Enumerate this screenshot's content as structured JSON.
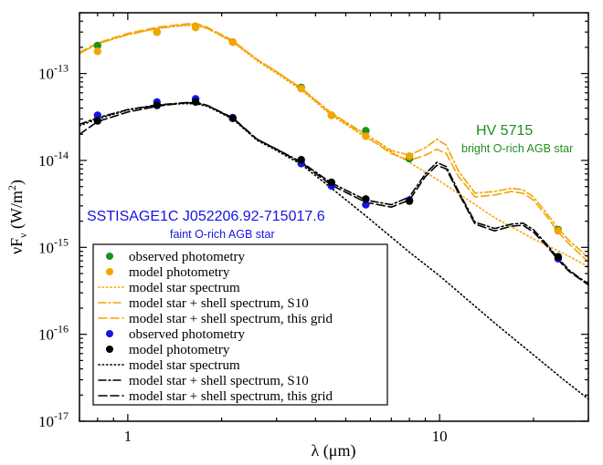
{
  "chart_data": {
    "type": "line",
    "xscale": "log",
    "yscale": "log",
    "xlim": [
      0.7,
      30
    ],
    "ylim": [
      1e-17,
      5e-13
    ],
    "x_ticks": [
      {
        "v": 1,
        "label": "1"
      },
      {
        "v": 10,
        "label": "10"
      }
    ],
    "y_ticks": [
      {
        "v": 1e-17,
        "base": "10",
        "exp": "-17"
      },
      {
        "v": 1e-16,
        "base": "10",
        "exp": "-16"
      },
      {
        "v": 1e-15,
        "base": "10",
        "exp": "-15"
      },
      {
        "v": 1e-14,
        "base": "10",
        "exp": "-14"
      },
      {
        "v": 1e-13,
        "base": "10",
        "exp": "-13"
      }
    ],
    "xlabel": {
      "pre": "λ (",
      "mu": "μ",
      "post": "m)"
    },
    "ylabel": {
      "nu": "ν",
      "F": "F",
      "sub": "ν",
      "unit": " (W/m",
      "exp": "2",
      "close": ")"
    },
    "colors": {
      "green": "#1f8f1f",
      "orange": "#f5a400",
      "blue": "#1515e0",
      "black": "#000000"
    },
    "series": [
      {
        "name": "HV 5715 observed photometry",
        "style": "marker",
        "color": "green",
        "x": [
          0.8,
          1.24,
          1.65,
          2.17,
          3.6,
          4.5,
          5.8,
          8.0,
          24.0
        ],
        "y": [
          2.1e-13,
          3e-13,
          3.4e-13,
          2.3e-13,
          6.9e-14,
          3.3e-14,
          2.2e-14,
          1.05e-14,
          1.6e-15
        ]
      },
      {
        "name": "HV 5715 model photometry",
        "style": "marker",
        "color": "orange",
        "x": [
          0.8,
          1.24,
          1.65,
          2.17,
          3.6,
          4.5,
          5.8,
          8.0,
          24.0
        ],
        "y": [
          1.8e-13,
          3e-13,
          3.4e-13,
          2.3e-13,
          6.7e-14,
          3.3e-14,
          1.9e-14,
          1.12e-14,
          1.55e-15
        ]
      },
      {
        "name": "HV 5715 model star spectrum",
        "style": "dotted",
        "color": "orange",
        "x": [
          0.7,
          0.8,
          1.0,
          1.24,
          1.5,
          1.65,
          1.8,
          2.17,
          2.6,
          3.0,
          3.6,
          4.5,
          5.8,
          8.0,
          10,
          15,
          20,
          25,
          30
        ],
        "y": [
          1.7e-13,
          2.2e-13,
          2.8e-13,
          3.3e-13,
          3.55e-13,
          3.6e-13,
          3.3e-13,
          2.3e-13,
          1.4e-13,
          1e-13,
          6.5e-14,
          3.3e-14,
          1.85e-14,
          9.5e-15,
          5.8e-15,
          2.2e-15,
          1.25e-15,
          8.5e-16,
          6e-16
        ]
      },
      {
        "name": "HV 5715 model star + shell spectrum, S10",
        "style": "dashdot",
        "color": "orange",
        "x": [
          0.7,
          0.8,
          1.0,
          1.24,
          1.5,
          1.65,
          1.8,
          2.17,
          2.6,
          3.0,
          3.6,
          4.5,
          5.8,
          7.0,
          8.0,
          9.0,
          9.8,
          10.5,
          11.5,
          13,
          15,
          17,
          18.5,
          20,
          22,
          24,
          26,
          28,
          30
        ],
        "y": [
          1.7e-13,
          2.2e-13,
          2.8e-13,
          3.3e-13,
          3.6e-13,
          3.7e-13,
          3.3e-13,
          2.35e-13,
          1.45e-13,
          1.05e-13,
          6.8e-14,
          3.5e-14,
          2e-14,
          1.3e-14,
          1.15e-14,
          1.4e-14,
          1.75e-14,
          1.5e-14,
          7.5e-15,
          4.2e-15,
          4.4e-15,
          4.8e-15,
          4.6e-15,
          3.8e-15,
          2.5e-15,
          1.65e-15,
          1.2e-15,
          9.5e-16,
          7.6e-16
        ]
      },
      {
        "name": "HV 5715 model star + shell spectrum, this grid",
        "style": "dashed",
        "color": "orange",
        "x": [
          0.7,
          0.8,
          1.0,
          1.24,
          1.5,
          1.65,
          1.8,
          2.17,
          2.6,
          3.0,
          3.6,
          4.5,
          5.8,
          7.0,
          8.0,
          9.0,
          9.8,
          10.5,
          11.5,
          13,
          15,
          17,
          18.5,
          20,
          22,
          24,
          26,
          28,
          30
        ],
        "y": [
          1.75e-13,
          2.25e-13,
          2.9e-13,
          3.4e-13,
          3.7e-13,
          3.8e-13,
          3.4e-13,
          2.4e-13,
          1.45e-13,
          1.05e-13,
          6.7e-14,
          3.4e-14,
          1.9e-14,
          1.2e-14,
          1e-14,
          1.15e-14,
          1.35e-14,
          1.2e-14,
          6.5e-15,
          3.8e-15,
          4e-15,
          4.4e-15,
          4.2e-15,
          3.5e-15,
          2.3e-15,
          1.5e-15,
          1.1e-15,
          8.6e-16,
          6.8e-16
        ]
      },
      {
        "name": "SSTISAGE1C observed photometry",
        "style": "marker",
        "color": "blue",
        "x": [
          0.8,
          1.24,
          1.65,
          2.17,
          3.6,
          4.5,
          5.8,
          8.0,
          24.0
        ],
        "y": [
          3.3e-14,
          4.7e-14,
          5.1e-14,
          3.1e-14,
          9.2e-15,
          5.1e-15,
          3.1e-15,
          3.5e-15,
          7.4e-16
        ]
      },
      {
        "name": "SSTISAGE1C model photometry",
        "style": "marker",
        "color": "black",
        "x": [
          0.8,
          1.24,
          1.65,
          2.17,
          3.6,
          4.5,
          5.8,
          8.0,
          24.0
        ],
        "y": [
          2.85e-14,
          4.3e-14,
          4.7e-14,
          3.05e-14,
          1.02e-14,
          5.6e-15,
          3.6e-15,
          3.4e-15,
          7.8e-16
        ]
      },
      {
        "name": "SSTISAGE1C model star spectrum",
        "style": "dotted",
        "color": "black",
        "x": [
          0.7,
          0.8,
          1.0,
          1.24,
          1.5,
          1.65,
          1.8,
          2.17,
          2.6,
          3.0,
          3.6,
          4.5,
          5.8,
          8.0,
          10,
          15,
          20,
          25,
          30
        ],
        "y": [
          2.5e-14,
          3e-14,
          3.8e-14,
          4.3e-14,
          4.5e-14,
          4.5e-14,
          4.2e-14,
          3e-14,
          1.7e-14,
          1.3e-14,
          9e-15,
          4.8e-15,
          2.3e-15,
          8.8e-16,
          4.7e-16,
          1.35e-16,
          5.8e-17,
          3e-17,
          1.8e-17
        ]
      },
      {
        "name": "SSTISAGE1C model star + shell spectrum, S10",
        "style": "dashdot",
        "color": "black",
        "x": [
          0.7,
          0.8,
          1.0,
          1.24,
          1.5,
          1.65,
          1.8,
          2.17,
          2.6,
          3.0,
          3.6,
          4.5,
          5.8,
          7.0,
          8.0,
          9.0,
          9.8,
          10.5,
          11.5,
          13,
          15,
          17,
          18.5,
          20,
          22,
          24,
          26,
          28,
          30
        ],
        "y": [
          2.6e-14,
          3.1e-14,
          3.85e-14,
          4.35e-14,
          4.6e-14,
          4.6e-14,
          4.3e-14,
          3.05e-14,
          1.75e-14,
          1.35e-14,
          9.6e-15,
          5.5e-15,
          3.5e-15,
          3.1e-15,
          3.8e-15,
          7e-15,
          9.5e-15,
          8.5e-15,
          4.4e-15,
          1.95e-15,
          1.65e-15,
          1.85e-15,
          1.9e-15,
          1.6e-15,
          1.1e-15,
          7.5e-16,
          5.5e-16,
          4.5e-16,
          3.8e-16
        ]
      },
      {
        "name": "SSTISAGE1C model star + shell spectrum, this grid",
        "style": "dashed",
        "color": "black",
        "x": [
          0.7,
          0.8,
          1.0,
          1.24,
          1.5,
          1.65,
          1.8,
          2.17,
          2.6,
          3.0,
          3.6,
          4.5,
          5.8,
          7.0,
          8.0,
          9.0,
          9.8,
          10.5,
          11.5,
          13,
          15,
          17,
          18.5,
          20,
          22,
          24,
          26,
          28,
          30
        ],
        "y": [
          2e-14,
          2.8e-14,
          3.6e-14,
          4.2e-14,
          4.6e-14,
          4.7e-14,
          4.3e-14,
          3.1e-14,
          1.75e-14,
          1.35e-14,
          9.4e-15,
          5.2e-15,
          3.3e-15,
          2.9e-15,
          3.5e-15,
          6.5e-15,
          8.8e-15,
          8e-15,
          4.2e-15,
          1.85e-15,
          1.55e-15,
          1.75e-15,
          1.8e-15,
          1.5e-15,
          1.05e-15,
          7.2e-16,
          5.3e-16,
          4.4e-16,
          3.7e-16
        ]
      }
    ],
    "annotations": {
      "hv_name": "HV 5715",
      "hv_desc": "bright O-rich AGB star",
      "sst_name": "SSTISAGE1C J052206.92-715017.6",
      "sst_desc": "faint O-rich AGB star"
    },
    "legend": {
      "position": "bottom-left",
      "entries": [
        {
          "label": "observed photometry",
          "style": "marker",
          "color": "green"
        },
        {
          "label": "model photometry",
          "style": "marker",
          "color": "orange"
        },
        {
          "label": "model star spectrum",
          "style": "dotted",
          "color": "orange"
        },
        {
          "label": "model star + shell spectrum, S10",
          "style": "dashdot",
          "color": "orange"
        },
        {
          "label": "model star + shell spectrum, this grid",
          "style": "dashed",
          "color": "orange"
        },
        {
          "label": "observed photometry",
          "style": "marker",
          "color": "blue"
        },
        {
          "label": "model photometry",
          "style": "marker",
          "color": "black"
        },
        {
          "label": "model star spectrum",
          "style": "dotted",
          "color": "black"
        },
        {
          "label": "model star + shell spectrum, S10",
          "style": "dashdot",
          "color": "black"
        },
        {
          "label": "model star + shell spectrum, this grid",
          "style": "dashed",
          "color": "black"
        }
      ]
    }
  }
}
